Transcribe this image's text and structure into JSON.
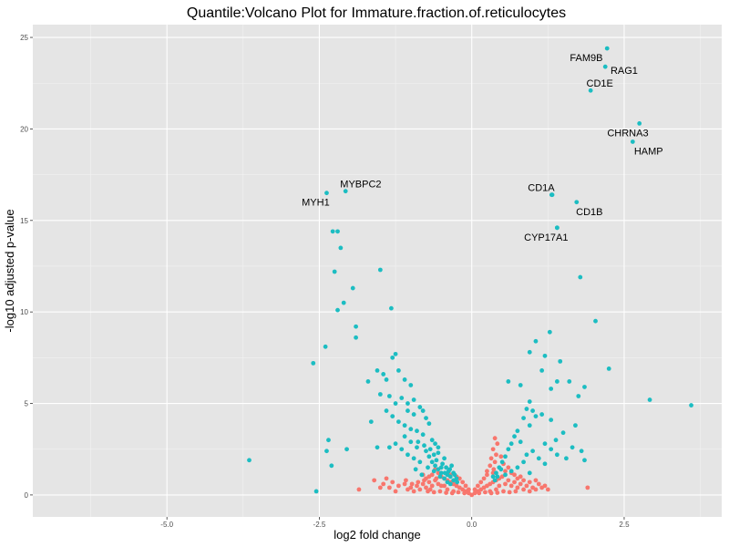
{
  "chart_data": {
    "type": "scatter",
    "title": "Quantile:Volcano Plot for Immature.fraction.of.reticulocytes",
    "xlabel": "log2 fold change",
    "ylabel": "-log10 adjusted p-value",
    "xlim": [
      -7.2,
      4.1
    ],
    "ylim": [
      -1.2,
      25.7
    ],
    "x_ticks": [
      -5.0,
      -2.5,
      0.0,
      2.5
    ],
    "x_tick_labels": [
      "-5.0",
      "-2.5",
      "0.0",
      "2.5"
    ],
    "y_ticks": [
      0,
      5,
      10,
      15,
      20,
      25
    ],
    "y_tick_labels": [
      "0",
      "5",
      "10",
      "15",
      "20",
      "25"
    ],
    "grid": true,
    "background": "#e5e5e5",
    "colors": {
      "significant": "#1cbdc2",
      "not_significant": "#f8766d"
    },
    "labeled_points": [
      {
        "gene": "FAM9B",
        "x": 2.22,
        "y": 24.4,
        "label_x": 1.88,
        "label_y": 23.9
      },
      {
        "gene": "RAG1",
        "x": 2.19,
        "y": 23.4,
        "label_x": 2.5,
        "label_y": 23.2
      },
      {
        "gene": "CD1E",
        "x": 1.95,
        "y": 22.1,
        "label_x": 2.1,
        "label_y": 22.5
      },
      {
        "gene": "CHRNA3",
        "x": 2.75,
        "y": 20.3,
        "label_x": 2.56,
        "label_y": 19.8
      },
      {
        "gene": "HAMP",
        "x": 2.64,
        "y": 19.3,
        "label_x": 2.9,
        "label_y": 18.8
      },
      {
        "gene": "MYBPC2",
        "x": -2.07,
        "y": 16.6,
        "label_x": -1.82,
        "label_y": 17.0
      },
      {
        "gene": "MYH1",
        "x": -2.38,
        "y": 16.5,
        "label_x": -2.56,
        "label_y": 16.0
      },
      {
        "gene": "CD1A",
        "x": 1.31,
        "y": 16.4,
        "label_x": 1.14,
        "label_y": 16.8
      },
      {
        "gene": "CD1B",
        "x": 1.72,
        "y": 16.0,
        "label_x": 1.93,
        "label_y": 15.5
      },
      {
        "gene": "CYP17A1",
        "x": 1.4,
        "y": 14.6,
        "label_x": 1.22,
        "label_y": 14.1
      }
    ],
    "significant_points": [
      [
        -2.28,
        14.4
      ],
      [
        -2.2,
        14.4
      ],
      [
        -2.15,
        13.5
      ],
      [
        -1.5,
        12.3
      ],
      [
        -2.25,
        12.2
      ],
      [
        -1.95,
        11.3
      ],
      [
        -2.1,
        10.5
      ],
      [
        -1.32,
        10.2
      ],
      [
        -2.2,
        10.1
      ],
      [
        -1.9,
        9.2
      ],
      [
        -2.4,
        8.1
      ],
      [
        -1.9,
        8.6
      ],
      [
        -1.25,
        7.7
      ],
      [
        -1.3,
        7.5
      ],
      [
        -2.6,
        7.2
      ],
      [
        -1.7,
        6.2
      ],
      [
        -1.55,
        6.8
      ],
      [
        -1.45,
        6.6
      ],
      [
        -1.4,
        6.3
      ],
      [
        -1.2,
        6.8
      ],
      [
        -1.1,
        6.3
      ],
      [
        -1.0,
        6.0
      ],
      [
        -1.5,
        5.5
      ],
      [
        -1.35,
        5.4
      ],
      [
        -1.25,
        5.0
      ],
      [
        -1.15,
        5.3
      ],
      [
        -1.05,
        5.0
      ],
      [
        -0.95,
        5.2
      ],
      [
        -0.85,
        4.8
      ],
      [
        -1.4,
        4.6
      ],
      [
        -1.3,
        4.3
      ],
      [
        -1.2,
        4.0
      ],
      [
        -1.1,
        3.8
      ],
      [
        -1.0,
        3.6
      ],
      [
        -0.9,
        3.5
      ],
      [
        -0.8,
        3.3
      ],
      [
        -0.75,
        4.2
      ],
      [
        -0.7,
        3.9
      ],
      [
        -0.65,
        3.0
      ],
      [
        -0.6,
        2.8
      ],
      [
        -0.55,
        2.6
      ],
      [
        -1.65,
        4.0
      ],
      [
        -1.25,
        2.8
      ],
      [
        -1.15,
        2.5
      ],
      [
        -1.05,
        2.2
      ],
      [
        -0.95,
        2.0
      ],
      [
        -0.85,
        1.8
      ],
      [
        -0.75,
        2.4
      ],
      [
        -0.7,
        2.1
      ],
      [
        -0.65,
        1.8
      ],
      [
        -0.6,
        1.6
      ],
      [
        -0.55,
        1.4
      ],
      [
        -0.5,
        1.2
      ],
      [
        -0.48,
        1.7
      ],
      [
        -0.45,
        2.0
      ],
      [
        -0.42,
        1.5
      ],
      [
        -0.4,
        1.1
      ],
      [
        -0.38,
        1.3
      ],
      [
        -0.35,
        1.0
      ],
      [
        -0.33,
        1.6
      ],
      [
        -0.3,
        1.2
      ],
      [
        -0.5,
        1.5
      ],
      [
        -0.55,
        2.3
      ],
      [
        -0.9,
        2.6
      ],
      [
        -1.0,
        2.9
      ],
      [
        -1.1,
        3.2
      ],
      [
        -1.35,
        2.6
      ],
      [
        -2.35,
        3.0
      ],
      [
        -2.38,
        2.4
      ],
      [
        -2.3,
        1.6
      ],
      [
        -2.55,
        0.2
      ],
      [
        -2.05,
        2.5
      ],
      [
        -3.65,
        1.9
      ],
      [
        -1.55,
        2.6
      ],
      [
        -0.62,
        2.2
      ],
      [
        -0.58,
        1.9
      ],
      [
        -0.52,
        1.0
      ],
      [
        -0.45,
        0.9
      ],
      [
        -0.4,
        0.7
      ],
      [
        -0.35,
        0.6
      ],
      [
        -0.3,
        0.8
      ],
      [
        -0.25,
        0.9
      ],
      [
        -0.62,
        1.3
      ],
      [
        -0.72,
        1.5
      ],
      [
        -0.82,
        1.1
      ],
      [
        -0.92,
        1.4
      ],
      [
        -0.44,
        1.2
      ],
      [
        -0.36,
        1.4
      ],
      [
        -0.28,
        1.1
      ],
      [
        -0.24,
        0.7
      ],
      [
        -0.8,
        4.6
      ],
      [
        -0.95,
        4.4
      ],
      [
        -1.05,
        4.6
      ],
      [
        -0.88,
        2.9
      ],
      [
        -0.78,
        2.7
      ],
      [
        -0.68,
        2.5
      ],
      [
        1.32,
        16.4
      ],
      [
        1.4,
        14.6
      ],
      [
        1.78,
        11.9
      ],
      [
        2.03,
        9.5
      ],
      [
        1.28,
        8.9
      ],
      [
        1.05,
        8.4
      ],
      [
        0.95,
        7.8
      ],
      [
        1.2,
        7.6
      ],
      [
        1.45,
        7.3
      ],
      [
        2.25,
        6.9
      ],
      [
        1.15,
        6.8
      ],
      [
        1.4,
        6.2
      ],
      [
        1.6,
        6.2
      ],
      [
        0.6,
        6.2
      ],
      [
        0.8,
        6.0
      ],
      [
        1.85,
        5.9
      ],
      [
        1.75,
        5.4
      ],
      [
        1.3,
        5.8
      ],
      [
        0.95,
        5.1
      ],
      [
        0.9,
        4.7
      ],
      [
        0.85,
        4.2
      ],
      [
        0.95,
        3.8
      ],
      [
        1.05,
        4.3
      ],
      [
        1.7,
        3.8
      ],
      [
        2.92,
        5.2
      ],
      [
        3.6,
        4.9
      ],
      [
        1.3,
        4.1
      ],
      [
        1.15,
        4.4
      ],
      [
        1.0,
        4.6
      ],
      [
        0.75,
        3.5
      ],
      [
        0.7,
        3.2
      ],
      [
        0.65,
        2.8
      ],
      [
        0.6,
        2.5
      ],
      [
        0.55,
        2.1
      ],
      [
        0.5,
        1.8
      ],
      [
        0.45,
        1.5
      ],
      [
        0.4,
        1.2
      ],
      [
        0.35,
        1.0
      ],
      [
        1.2,
        2.8
      ],
      [
        1.3,
        2.5
      ],
      [
        1.4,
        2.2
      ],
      [
        1.55,
        2.0
      ],
      [
        1.65,
        2.6
      ],
      [
        1.8,
        2.4
      ],
      [
        1.85,
        1.9
      ],
      [
        0.85,
        1.8
      ],
      [
        0.75,
        1.5
      ],
      [
        0.65,
        1.3
      ],
      [
        0.55,
        1.1
      ],
      [
        0.9,
        2.2
      ],
      [
        1.0,
        2.4
      ],
      [
        1.1,
        2.0
      ],
      [
        1.2,
        1.7
      ],
      [
        0.95,
        1.2
      ],
      [
        0.48,
        1.4
      ],
      [
        0.42,
        1.0
      ],
      [
        0.38,
        0.8
      ],
      [
        1.38,
        3.0
      ],
      [
        1.5,
        3.4
      ],
      [
        0.8,
        2.9
      ]
    ],
    "not_significant_points": [
      [
        0.0,
        0.0
      ],
      [
        -0.05,
        0.1
      ],
      [
        0.05,
        0.1
      ],
      [
        -0.1,
        0.2
      ],
      [
        0.1,
        0.2
      ],
      [
        -0.15,
        0.3
      ],
      [
        0.15,
        0.3
      ],
      [
        -0.2,
        0.4
      ],
      [
        0.2,
        0.4
      ],
      [
        -0.25,
        0.5
      ],
      [
        0.25,
        0.5
      ],
      [
        -0.3,
        0.6
      ],
      [
        0.3,
        0.6
      ],
      [
        -0.35,
        0.7
      ],
      [
        0.35,
        0.7
      ],
      [
        -0.4,
        0.8
      ],
      [
        0.4,
        0.8
      ],
      [
        -0.45,
        0.9
      ],
      [
        0.45,
        0.9
      ],
      [
        -0.5,
        1.0
      ],
      [
        0.5,
        1.0
      ],
      [
        -0.55,
        0.6
      ],
      [
        0.55,
        0.6
      ],
      [
        -0.6,
        0.8
      ],
      [
        0.6,
        0.8
      ],
      [
        -0.65,
        0.5
      ],
      [
        0.65,
        0.5
      ],
      [
        -0.7,
        0.7
      ],
      [
        0.7,
        0.7
      ],
      [
        -0.75,
        0.4
      ],
      [
        0.75,
        0.4
      ],
      [
        -0.8,
        0.6
      ],
      [
        0.8,
        0.6
      ],
      [
        -0.85,
        0.3
      ],
      [
        0.85,
        0.3
      ],
      [
        -0.9,
        0.5
      ],
      [
        0.9,
        0.5
      ],
      [
        -0.95,
        0.2
      ],
      [
        0.95,
        0.2
      ],
      [
        -1.0,
        0.4
      ],
      [
        1.0,
        0.4
      ],
      [
        -1.05,
        0.3
      ],
      [
        1.05,
        0.3
      ],
      [
        -1.1,
        0.6
      ],
      [
        1.1,
        0.6
      ],
      [
        -1.2,
        0.5
      ],
      [
        1.2,
        0.5
      ],
      [
        -1.3,
        0.7
      ],
      [
        -1.4,
        0.9
      ],
      [
        -1.5,
        0.4
      ],
      [
        -1.6,
        0.8
      ],
      [
        -1.85,
        0.3
      ],
      [
        -0.3,
        0.2
      ],
      [
        0.3,
        0.2
      ],
      [
        -0.4,
        0.3
      ],
      [
        0.4,
        0.3
      ],
      [
        -0.45,
        0.5
      ],
      [
        0.45,
        0.5
      ],
      [
        -0.55,
        1.2
      ],
      [
        0.55,
        1.3
      ],
      [
        -0.6,
        1.4
      ],
      [
        0.6,
        1.5
      ],
      [
        -0.65,
        1.1
      ],
      [
        0.65,
        1.2
      ],
      [
        -0.7,
        1.0
      ],
      [
        0.7,
        1.1
      ],
      [
        -0.75,
        0.9
      ],
      [
        0.75,
        0.9
      ],
      [
        -0.8,
        1.1
      ],
      [
        0.8,
        1.0
      ],
      [
        -0.35,
        1.1
      ],
      [
        0.35,
        1.2
      ],
      [
        -0.25,
        1.0
      ],
      [
        0.25,
        1.1
      ],
      [
        -0.2,
        0.9
      ],
      [
        0.2,
        0.9
      ],
      [
        -0.15,
        0.7
      ],
      [
        0.15,
        0.7
      ],
      [
        -0.1,
        0.5
      ],
      [
        0.1,
        0.5
      ],
      [
        -0.05,
        0.3
      ],
      [
        0.05,
        0.3
      ],
      [
        -0.12,
        0.1
      ],
      [
        0.12,
        0.1
      ],
      [
        -0.22,
        0.15
      ],
      [
        0.22,
        0.15
      ],
      [
        -0.32,
        0.1
      ],
      [
        0.32,
        0.1
      ],
      [
        -0.42,
        0.12
      ],
      [
        0.42,
        0.12
      ],
      [
        -0.52,
        0.2
      ],
      [
        0.52,
        0.2
      ],
      [
        -0.62,
        0.15
      ],
      [
        0.62,
        0.15
      ],
      [
        -0.72,
        0.2
      ],
      [
        0.72,
        0.2
      ],
      [
        0.38,
        3.1
      ],
      [
        0.42,
        2.8
      ],
      [
        0.35,
        2.5
      ],
      [
        0.4,
        2.2
      ],
      [
        0.32,
        2.0
      ],
      [
        0.38,
        1.8
      ],
      [
        0.3,
        1.6
      ],
      [
        0.36,
        1.4
      ],
      [
        0.25,
        1.3
      ],
      [
        0.48,
        2.1
      ],
      [
        0.52,
        1.7
      ],
      [
        -0.5,
        0.5
      ],
      [
        -0.58,
        0.9
      ],
      [
        -0.68,
        0.3
      ],
      [
        -0.78,
        0.8
      ],
      [
        -0.88,
        0.7
      ],
      [
        -0.98,
        0.6
      ],
      [
        -1.08,
        0.8
      ],
      [
        0.85,
        0.8
      ],
      [
        0.95,
        0.7
      ],
      [
        1.05,
        0.8
      ],
      [
        1.15,
        0.4
      ],
      [
        1.25,
        0.3
      ],
      [
        -1.25,
        0.2
      ],
      [
        -1.35,
        0.4
      ],
      [
        -1.45,
        0.6
      ],
      [
        1.9,
        0.4
      ]
    ]
  }
}
